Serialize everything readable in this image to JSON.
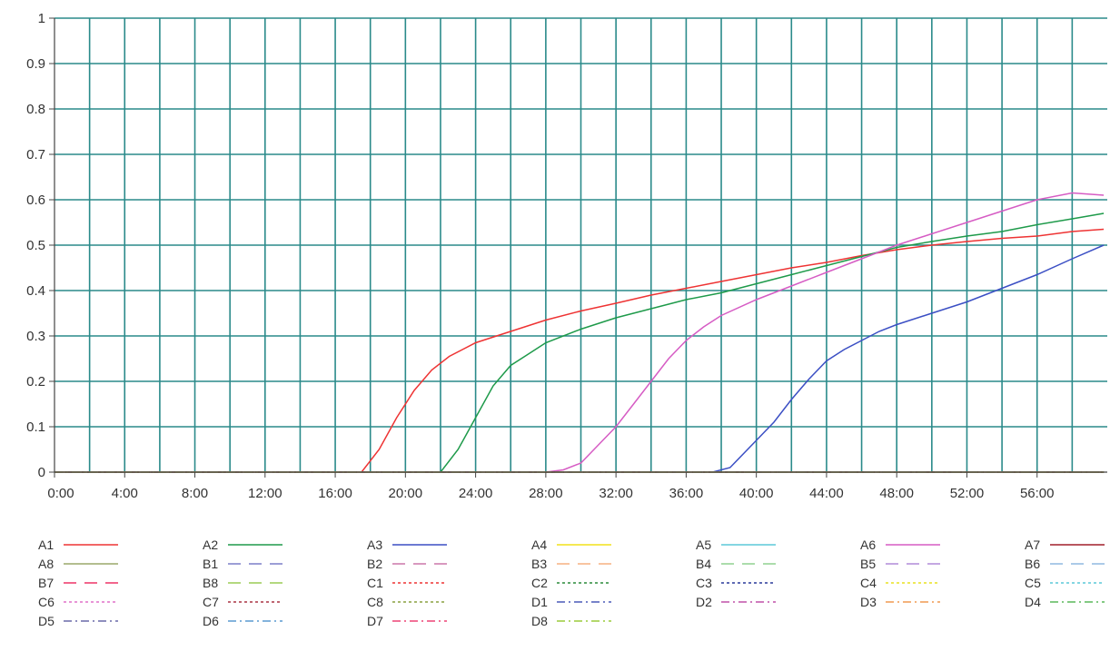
{
  "chart_data": {
    "type": "line",
    "title": "",
    "xlabel": "",
    "ylabel": "",
    "xlim": [
      0,
      60
    ],
    "ylim": [
      0,
      1
    ],
    "x_unit": "minutes",
    "grid": true,
    "grid_color": "#2a8a8a",
    "xticks": [
      {
        "v": 0,
        "label": "0:00"
      },
      {
        "v": 4,
        "label": "4:00"
      },
      {
        "v": 8,
        "label": "8:00"
      },
      {
        "v": 12,
        "label": "12:00"
      },
      {
        "v": 16,
        "label": "16:00"
      },
      {
        "v": 20,
        "label": "20:00"
      },
      {
        "v": 24,
        "label": "24:00"
      },
      {
        "v": 28,
        "label": "28:00"
      },
      {
        "v": 32,
        "label": "32:00"
      },
      {
        "v": 36,
        "label": "36:00"
      },
      {
        "v": 40,
        "label": "40:00"
      },
      {
        "v": 44,
        "label": "44:00"
      },
      {
        "v": 48,
        "label": "48:00"
      },
      {
        "v": 52,
        "label": "52:00"
      },
      {
        "v": 56,
        "label": "56:00"
      }
    ],
    "yticks": [
      {
        "v": 0,
        "label": "0"
      },
      {
        "v": 0.1,
        "label": "0.1"
      },
      {
        "v": 0.2,
        "label": "0.2"
      },
      {
        "v": 0.3,
        "label": "0.3"
      },
      {
        "v": 0.4,
        "label": "0.4"
      },
      {
        "v": 0.5,
        "label": "0.5"
      },
      {
        "v": 0.6,
        "label": "0.6"
      },
      {
        "v": 0.7,
        "label": "0.7"
      },
      {
        "v": 0.8,
        "label": "0.8"
      },
      {
        "v": 0.9,
        "label": "0.9"
      },
      {
        "v": 1,
        "label": "1"
      }
    ],
    "legend_position": "bottom",
    "series": [
      {
        "name": "A1",
        "color": "#ee3333",
        "dash": "solid",
        "points": [
          [
            0,
            0
          ],
          [
            17.5,
            0
          ],
          [
            18.5,
            0.05
          ],
          [
            19.5,
            0.12
          ],
          [
            20.5,
            0.18
          ],
          [
            21.5,
            0.225
          ],
          [
            22.5,
            0.255
          ],
          [
            24,
            0.285
          ],
          [
            26,
            0.31
          ],
          [
            28,
            0.335
          ],
          [
            30,
            0.355
          ],
          [
            32,
            0.372
          ],
          [
            34,
            0.39
          ],
          [
            36,
            0.405
          ],
          [
            38,
            0.42
          ],
          [
            40,
            0.435
          ],
          [
            42,
            0.45
          ],
          [
            44,
            0.462
          ],
          [
            46,
            0.477
          ],
          [
            48,
            0.49
          ],
          [
            50,
            0.5
          ],
          [
            52,
            0.508
          ],
          [
            54,
            0.515
          ],
          [
            56,
            0.52
          ],
          [
            58,
            0.53
          ],
          [
            59.8,
            0.535
          ]
        ]
      },
      {
        "name": "A2",
        "color": "#1e9a4a",
        "dash": "solid",
        "points": [
          [
            0,
            0
          ],
          [
            22,
            0
          ],
          [
            23,
            0.05
          ],
          [
            24,
            0.12
          ],
          [
            25,
            0.19
          ],
          [
            26,
            0.235
          ],
          [
            27,
            0.26
          ],
          [
            28,
            0.285
          ],
          [
            30,
            0.315
          ],
          [
            32,
            0.34
          ],
          [
            34,
            0.36
          ],
          [
            36,
            0.38
          ],
          [
            38,
            0.395
          ],
          [
            40,
            0.415
          ],
          [
            42,
            0.435
          ],
          [
            44,
            0.455
          ],
          [
            46,
            0.475
          ],
          [
            48,
            0.495
          ],
          [
            50,
            0.508
          ],
          [
            52,
            0.52
          ],
          [
            54,
            0.53
          ],
          [
            56,
            0.545
          ],
          [
            58,
            0.558
          ],
          [
            59.8,
            0.57
          ]
        ]
      },
      {
        "name": "A3",
        "color": "#3b4fc4",
        "dash": "solid",
        "points": [
          [
            0,
            0
          ],
          [
            37.5,
            0
          ],
          [
            38.5,
            0.01
          ],
          [
            40,
            0.07
          ],
          [
            41,
            0.11
          ],
          [
            42,
            0.16
          ],
          [
            43,
            0.205
          ],
          [
            44,
            0.245
          ],
          [
            45,
            0.27
          ],
          [
            46,
            0.29
          ],
          [
            47,
            0.31
          ],
          [
            48,
            0.325
          ],
          [
            50,
            0.35
          ],
          [
            52,
            0.375
          ],
          [
            53,
            0.39
          ],
          [
            54,
            0.405
          ],
          [
            56,
            0.435
          ],
          [
            58,
            0.47
          ],
          [
            59.8,
            0.5
          ]
        ]
      },
      {
        "name": "A4",
        "color": "#f2e21a",
        "dash": "solid",
        "points": [
          [
            0,
            0
          ],
          [
            59.8,
            0
          ]
        ]
      },
      {
        "name": "A5",
        "color": "#5cc8d8",
        "dash": "solid",
        "points": [
          [
            0,
            0
          ],
          [
            59.8,
            0
          ]
        ]
      },
      {
        "name": "A6",
        "color": "#d65cc4",
        "dash": "solid",
        "points": [
          [
            0,
            0
          ],
          [
            28,
            0
          ],
          [
            29,
            0.005
          ],
          [
            30,
            0.02
          ],
          [
            31,
            0.06
          ],
          [
            32,
            0.1
          ],
          [
            33,
            0.15
          ],
          [
            34,
            0.2
          ],
          [
            35,
            0.25
          ],
          [
            36,
            0.29
          ],
          [
            37,
            0.32
          ],
          [
            38,
            0.345
          ],
          [
            40,
            0.38
          ],
          [
            42,
            0.41
          ],
          [
            44,
            0.44
          ],
          [
            46,
            0.47
          ],
          [
            48,
            0.5
          ],
          [
            50,
            0.525
          ],
          [
            52,
            0.55
          ],
          [
            54,
            0.575
          ],
          [
            56,
            0.6
          ],
          [
            58,
            0.615
          ],
          [
            59.8,
            0.61
          ]
        ]
      },
      {
        "name": "A7",
        "color": "#a01e2a",
        "dash": "solid",
        "points": [
          [
            0,
            0
          ],
          [
            59.8,
            0
          ]
        ]
      },
      {
        "name": "A8",
        "color": "#9aa86a",
        "dash": "solid",
        "points": [
          [
            0,
            0
          ],
          [
            59.8,
            0
          ]
        ]
      },
      {
        "name": "B1",
        "color": "#7b7fc8",
        "dash": "long",
        "points": [
          [
            0,
            0
          ],
          [
            59.8,
            0
          ]
        ]
      },
      {
        "name": "B2",
        "color": "#cc77aa",
        "dash": "long",
        "points": [
          [
            0,
            0
          ],
          [
            59.8,
            0
          ]
        ]
      },
      {
        "name": "B3",
        "color": "#f5b080",
        "dash": "long",
        "points": [
          [
            0,
            0
          ],
          [
            59.8,
            0
          ]
        ]
      },
      {
        "name": "B4",
        "color": "#8fd08f",
        "dash": "long",
        "points": [
          [
            0,
            0
          ],
          [
            59.8,
            0
          ]
        ]
      },
      {
        "name": "B5",
        "color": "#b08cd8",
        "dash": "long",
        "points": [
          [
            0,
            0
          ],
          [
            59.8,
            0
          ]
        ]
      },
      {
        "name": "B6",
        "color": "#8fb8e0",
        "dash": "long",
        "points": [
          [
            0,
            0
          ],
          [
            59.8,
            0
          ]
        ]
      },
      {
        "name": "B7",
        "color": "#ee3366",
        "dash": "long",
        "points": [
          [
            0,
            0
          ],
          [
            59.8,
            0
          ]
        ]
      },
      {
        "name": "B8",
        "color": "#9acc55",
        "dash": "long",
        "points": [
          [
            0,
            0
          ],
          [
            59.8,
            0
          ]
        ]
      },
      {
        "name": "C1",
        "color": "#ee3333",
        "dash": "dot",
        "points": [
          [
            0,
            0
          ],
          [
            59.8,
            0
          ]
        ]
      },
      {
        "name": "C2",
        "color": "#2a8a3a",
        "dash": "dot",
        "points": [
          [
            0,
            0
          ],
          [
            59.8,
            0
          ]
        ]
      },
      {
        "name": "C3",
        "color": "#2a3a9a",
        "dash": "dot",
        "points": [
          [
            0,
            0
          ],
          [
            59.8,
            0
          ]
        ]
      },
      {
        "name": "C4",
        "color": "#e8e020",
        "dash": "dot",
        "points": [
          [
            0,
            0
          ],
          [
            59.8,
            0
          ]
        ]
      },
      {
        "name": "C5",
        "color": "#5cc8d8",
        "dash": "dot",
        "points": [
          [
            0,
            0
          ],
          [
            59.8,
            0
          ]
        ]
      },
      {
        "name": "C6",
        "color": "#e070c8",
        "dash": "dot",
        "points": [
          [
            0,
            0
          ],
          [
            59.8,
            0
          ]
        ]
      },
      {
        "name": "C7",
        "color": "#aa3344",
        "dash": "dot",
        "points": [
          [
            0,
            0
          ],
          [
            59.8,
            0
          ]
        ]
      },
      {
        "name": "C8",
        "color": "#8aa040",
        "dash": "dot",
        "points": [
          [
            0,
            0
          ],
          [
            59.8,
            0
          ]
        ]
      },
      {
        "name": "D1",
        "color": "#4a5ab8",
        "dash": "dashdot",
        "points": [
          [
            0,
            0
          ],
          [
            59.8,
            0
          ]
        ]
      },
      {
        "name": "D2",
        "color": "#c050a8",
        "dash": "dashdot",
        "points": [
          [
            0,
            0
          ],
          [
            59.8,
            0
          ]
        ]
      },
      {
        "name": "D3",
        "color": "#f09a50",
        "dash": "dashdot",
        "points": [
          [
            0,
            0
          ],
          [
            59.8,
            0
          ]
        ]
      },
      {
        "name": "D4",
        "color": "#5ab85a",
        "dash": "dashdot",
        "points": [
          [
            0,
            0
          ],
          [
            59.8,
            0
          ]
        ]
      },
      {
        "name": "D5",
        "color": "#6a6aa8",
        "dash": "dashdot",
        "points": [
          [
            0,
            0
          ],
          [
            59.8,
            0
          ]
        ]
      },
      {
        "name": "D6",
        "color": "#5a9ad0",
        "dash": "dashdot",
        "points": [
          [
            0,
            0
          ],
          [
            59.8,
            0
          ]
        ]
      },
      {
        "name": "D7",
        "color": "#ee4477",
        "dash": "dashdot",
        "points": [
          [
            0,
            0
          ],
          [
            59.8,
            0
          ]
        ]
      },
      {
        "name": "D8",
        "color": "#9acc3a",
        "dash": "dashdot",
        "points": [
          [
            0,
            0
          ],
          [
            59.8,
            0
          ]
        ]
      }
    ]
  }
}
